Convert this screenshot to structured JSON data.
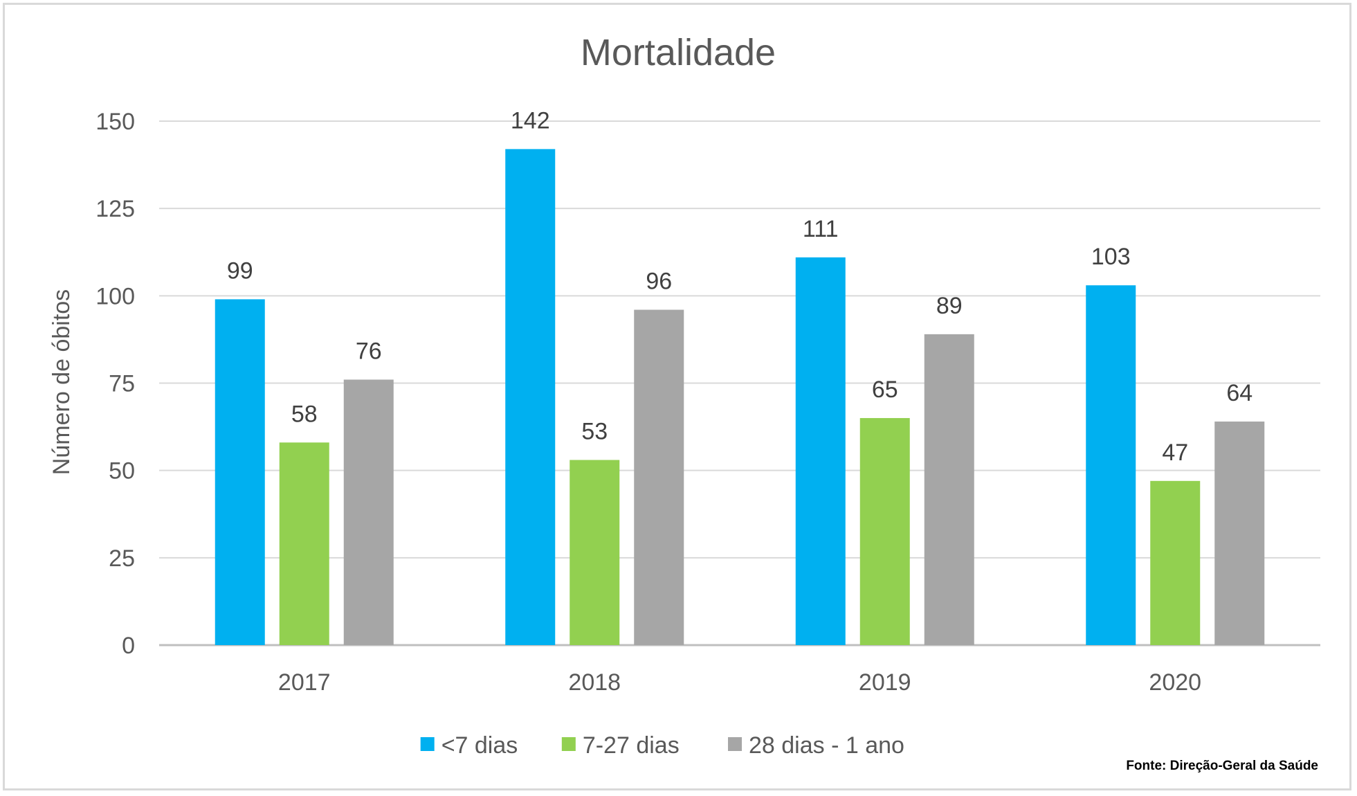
{
  "chart_data": {
    "type": "bar",
    "title": "Mortalidade",
    "xlabel": "",
    "ylabel": "Número de óbitos",
    "ylim": [
      0,
      150
    ],
    "yticks": [
      0,
      25,
      50,
      75,
      100,
      125,
      150
    ],
    "categories": [
      "2017",
      "2018",
      "2019",
      "2020"
    ],
    "series": [
      {
        "name": "<7 dias",
        "color": "#00b0f0",
        "values": [
          99,
          142,
          111,
          103
        ]
      },
      {
        "name": "7-27 dias",
        "color": "#92d050",
        "values": [
          58,
          53,
          65,
          47
        ]
      },
      {
        "name": "28 dias - 1 ano",
        "color": "#a6a6a6",
        "values": [
          76,
          96,
          89,
          64
        ]
      }
    ],
    "grid": true,
    "data_labels": true,
    "legend_position": "bottom",
    "source": "Fonte: Direção-Geral da Saúde"
  }
}
